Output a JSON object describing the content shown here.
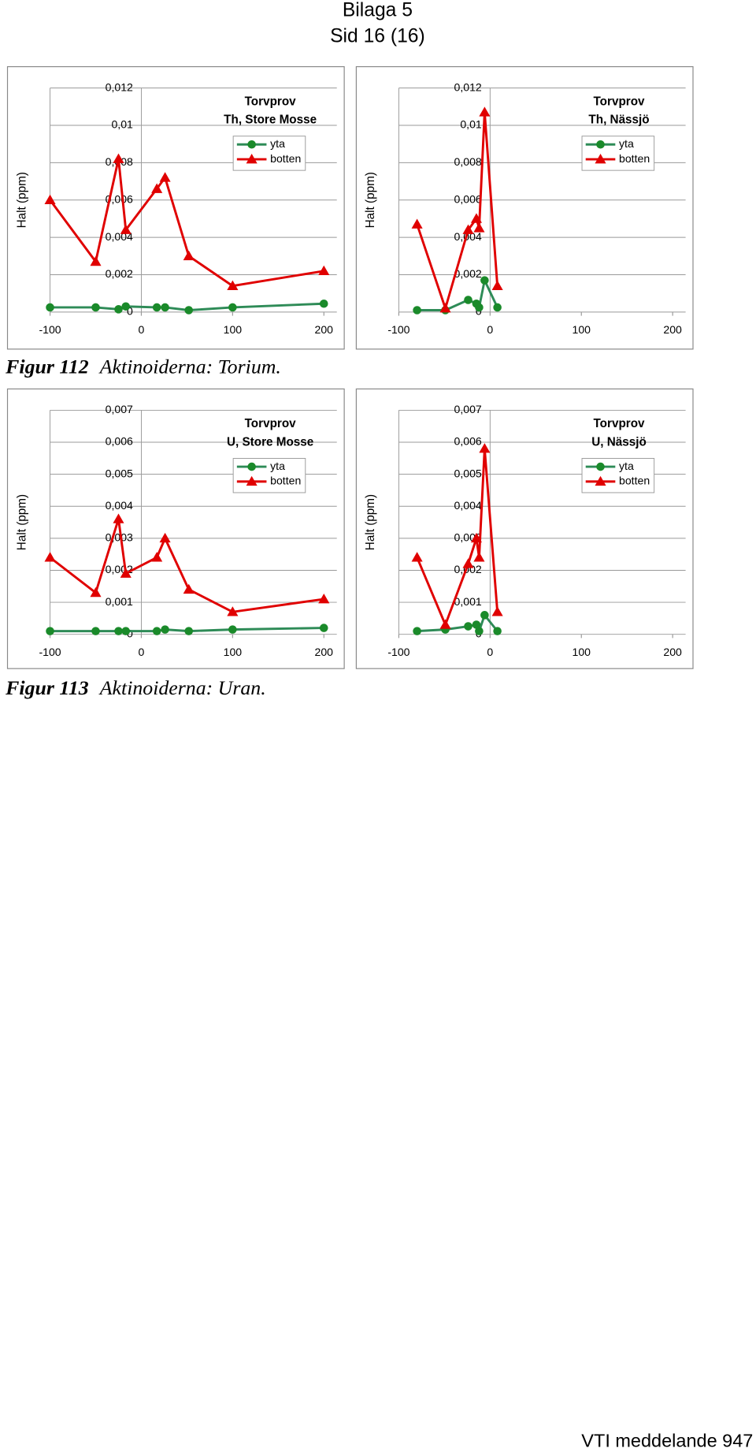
{
  "header": {
    "title": "Bilaga 5",
    "subtitle": "Sid 16 (16)"
  },
  "chart_data": [
    {
      "type": "line",
      "title": "Torvprov",
      "subtitle": "Th, Store Mosse",
      "y_label": "Halt (ppm)",
      "x": [
        -100,
        -50,
        -25,
        -17,
        17,
        26,
        52,
        100,
        200
      ],
      "series": [
        {
          "name": "yta",
          "color": "#2e8b57",
          "marker": "circle",
          "values": [
            0.00025,
            0.00025,
            0.00015,
            0.0003,
            0.00025,
            0.00025,
            0.0001,
            0.00025,
            0.00045
          ]
        },
        {
          "name": "botten",
          "color": "#e00000",
          "marker": "triangle",
          "values": [
            0.006,
            0.0027,
            0.0082,
            0.0044,
            0.0066,
            0.0072,
            0.003,
            0.0014,
            0.0022
          ]
        }
      ],
      "xlim": [
        -100,
        200
      ],
      "xticks": [
        -100,
        0,
        100,
        200
      ],
      "ylim": [
        0,
        0.012
      ],
      "yticks": [
        0,
        {
          "value": 0.002,
          "label": "0,002"
        },
        {
          "value": 0.004,
          "label": "0,004"
        },
        {
          "value": 0.006,
          "label": "0,006"
        },
        {
          "value": 0.008,
          "label": "0,008"
        },
        {
          "value": 0.01,
          "label": "0,01"
        },
        {
          "value": 0.012,
          "label": "0,012"
        }
      ],
      "grid": true
    },
    {
      "type": "line",
      "title": "Torvprov",
      "subtitle": "Th, Nässjö",
      "y_label": "Halt (ppm)",
      "x": [
        -80,
        -49,
        -24,
        -15,
        -12,
        -6,
        8
      ],
      "series": [
        {
          "name": "yta",
          "color": "#2e8b57",
          "marker": "circle",
          "values": [
            0.0001,
            0.0001,
            0.00065,
            0.00045,
            0.00025,
            0.0017,
            0.00025
          ]
        },
        {
          "name": "botten",
          "color": "#e00000",
          "marker": "triangle",
          "values": [
            0.0047,
            0.0002,
            0.0044,
            0.005,
            0.0045,
            0.0107,
            0.0014
          ]
        }
      ],
      "xlim": [
        -100,
        200
      ],
      "xticks": [
        -100,
        0,
        100,
        200
      ],
      "ylim": [
        0,
        0.012
      ],
      "yticks": [
        0,
        {
          "value": 0.002,
          "label": "0,002"
        },
        {
          "value": 0.004,
          "label": "0,004"
        },
        {
          "value": 0.006,
          "label": "0,006"
        },
        {
          "value": 0.008,
          "label": "0,008"
        },
        {
          "value": 0.01,
          "label": "0,01"
        },
        {
          "value": 0.012,
          "label": "0,012"
        }
      ],
      "grid": true
    },
    {
      "type": "line",
      "title": "Torvprov",
      "subtitle": "U, Store Mosse",
      "y_label": "Halt (ppm)",
      "x": [
        -100,
        -50,
        -25,
        -17,
        17,
        26,
        52,
        100,
        200
      ],
      "series": [
        {
          "name": "yta",
          "color": "#2e8b57",
          "marker": "circle",
          "values": [
            0.0001,
            0.0001,
            0.0001,
            0.0001,
            0.0001,
            0.00015,
            0.0001,
            0.00015,
            0.0002
          ]
        },
        {
          "name": "botten",
          "color": "#e00000",
          "marker": "triangle",
          "values": [
            0.0024,
            0.0013,
            0.0036,
            0.0019,
            0.0024,
            0.003,
            0.0014,
            0.0007,
            0.0011
          ]
        }
      ],
      "xlim": [
        -100,
        200
      ],
      "xticks": [
        -100,
        0,
        100,
        200
      ],
      "ylim": [
        0,
        0.007
      ],
      "yticks": [
        0,
        {
          "value": 0.001,
          "label": "0,001"
        },
        {
          "value": 0.002,
          "label": "0,002"
        },
        {
          "value": 0.003,
          "label": "0,003"
        },
        {
          "value": 0.004,
          "label": "0,004"
        },
        {
          "value": 0.005,
          "label": "0,005"
        },
        {
          "value": 0.006,
          "label": "0,006"
        },
        {
          "value": 0.007,
          "label": "0,007"
        }
      ],
      "grid": true
    },
    {
      "type": "line",
      "title": "Torvprov",
      "subtitle": "U, Nässjö",
      "y_label": "Halt (ppm)",
      "x": [
        -80,
        -49,
        -24,
        -15,
        -12,
        -6,
        8
      ],
      "series": [
        {
          "name": "yta",
          "color": "#2e8b57",
          "marker": "circle",
          "values": [
            0.0001,
            0.00015,
            0.00025,
            0.0003,
            0.0001,
            0.0006,
            0.0001
          ]
        },
        {
          "name": "botten",
          "color": "#e00000",
          "marker": "triangle",
          "values": [
            0.0024,
            0.0003,
            0.0022,
            0.003,
            0.0024,
            0.0058,
            0.0007
          ]
        }
      ],
      "xlim": [
        -100,
        200
      ],
      "xticks": [
        -100,
        0,
        100,
        200
      ],
      "ylim": [
        0,
        0.007
      ],
      "yticks": [
        0,
        {
          "value": 0.001,
          "label": "0,001"
        },
        {
          "value": 0.002,
          "label": "0,002"
        },
        {
          "value": 0.003,
          "label": "0,003"
        },
        {
          "value": 0.004,
          "label": "0,004"
        },
        {
          "value": 0.005,
          "label": "0,005"
        },
        {
          "value": 0.006,
          "label": "0,006"
        },
        {
          "value": 0.007,
          "label": "0,007"
        }
      ],
      "grid": true
    }
  ],
  "captions": [
    {
      "number": "Figur 112",
      "text": "Aktinoiderna: Torium."
    },
    {
      "number": "Figur 113",
      "text": "Aktinoiderna: Uran."
    }
  ],
  "footer": "VTI meddelande 947"
}
